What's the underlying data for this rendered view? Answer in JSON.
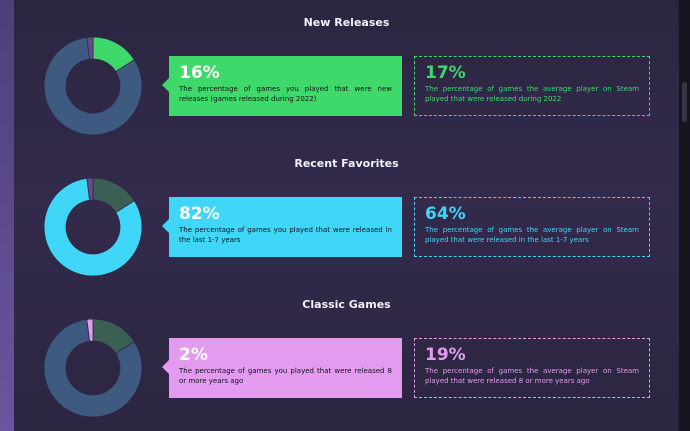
{
  "sections": [
    {
      "title": "New Releases",
      "percent_label": "16%",
      "description": "The percentage of games you played that were new releases (games released during 2022)",
      "average_percent_label": "17%",
      "average_description": "The percentage of games the average player on Steam played that were released during 2022",
      "accent_color": "#3fd96b",
      "chart_data": {
        "type": "pie",
        "categories": [
          "New Releases",
          "Recent Favorites",
          "Classic Games"
        ],
        "values": [
          16,
          82,
          2
        ],
        "highlight": "New Releases"
      }
    },
    {
      "title": "Recent Favorites",
      "percent_label": "82%",
      "description": "The percentage of games you played that were released in the last 1-7 years",
      "average_percent_label": "64%",
      "average_description": "The percentage of games the average player on Steam played that were released in the last 1-7 years",
      "accent_color": "#3fd6f7",
      "chart_data": {
        "type": "pie",
        "categories": [
          "New Releases",
          "Recent Favorites",
          "Classic Games"
        ],
        "values": [
          16,
          82,
          2
        ],
        "highlight": "Recent Favorites"
      }
    },
    {
      "title": "Classic Games",
      "percent_label": "2%",
      "description": "The percentage of games you played that were released 8 or more years ago",
      "average_percent_label": "19%",
      "average_description": "The percentage of games the average player on Steam played that were released 8 or more years ago",
      "accent_color": "#e39bf0",
      "chart_data": {
        "type": "pie",
        "categories": [
          "New Releases",
          "Recent Favorites",
          "Classic Games"
        ],
        "values": [
          16,
          82,
          2
        ],
        "highlight": "Classic Games"
      }
    }
  ],
  "colors": {
    "new_releases": "#3fd96b",
    "recent_favorites": "#3fd6f7",
    "classic_games": "#e39bf0",
    "muted_new": "#3b5e55",
    "muted_recent": "#3f5a80",
    "muted_classic": "#6a4b8a"
  }
}
